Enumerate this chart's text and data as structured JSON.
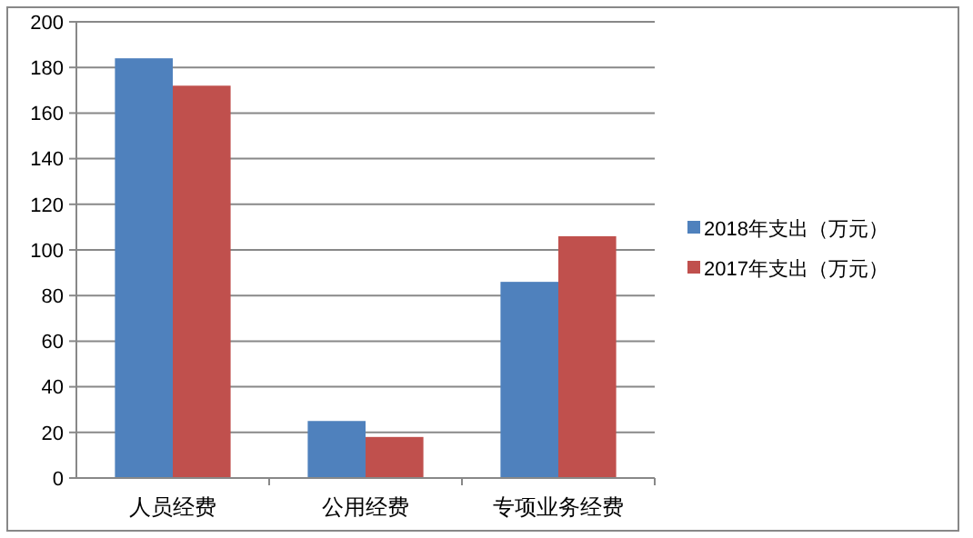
{
  "chart_data": {
    "type": "bar",
    "categories": [
      "人员经费",
      "公用经费",
      "专项业务经费"
    ],
    "series": [
      {
        "name": "2018年支出（万元）",
        "color": "#4f81bd",
        "values": [
          184,
          25,
          86
        ]
      },
      {
        "name": "2017年支出（万元）",
        "color": "#c0504d",
        "values": [
          172,
          18,
          106
        ]
      }
    ],
    "ylim": [
      0,
      200
    ],
    "yticks": [
      0,
      20,
      40,
      60,
      80,
      100,
      120,
      140,
      160,
      180,
      200
    ],
    "grid": "y",
    "legend": "right"
  }
}
